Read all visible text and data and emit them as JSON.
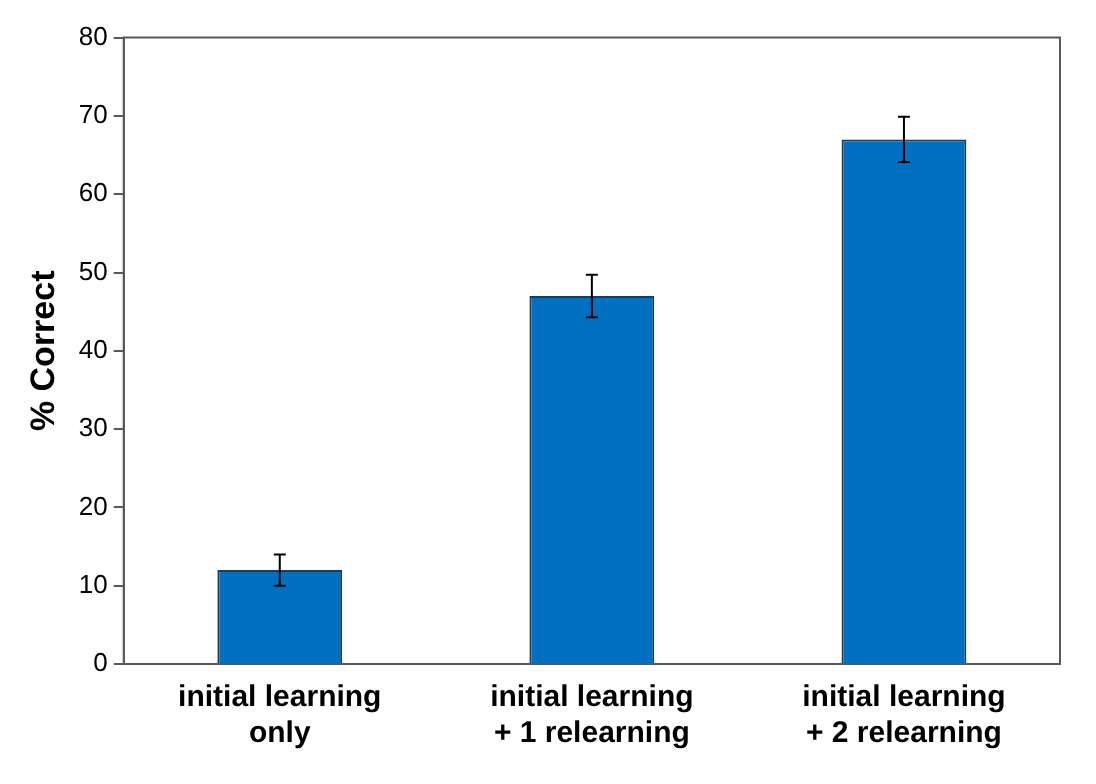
{
  "chart_data": {
    "type": "bar",
    "ylabel": "% Correct",
    "categories": [
      "initial learning\nonly",
      "initial learning\n+ 1 relearning",
      "initial learning\n+ 2 relearning"
    ],
    "values": [
      12,
      47,
      67
    ],
    "errors": [
      2,
      2.7,
      2.9
    ],
    "color": "#0070c0",
    "ylim": [
      0,
      80
    ],
    "yticks": [
      0,
      10,
      20,
      30,
      40,
      50,
      60,
      70,
      80
    ],
    "grid": false,
    "legend": false
  }
}
